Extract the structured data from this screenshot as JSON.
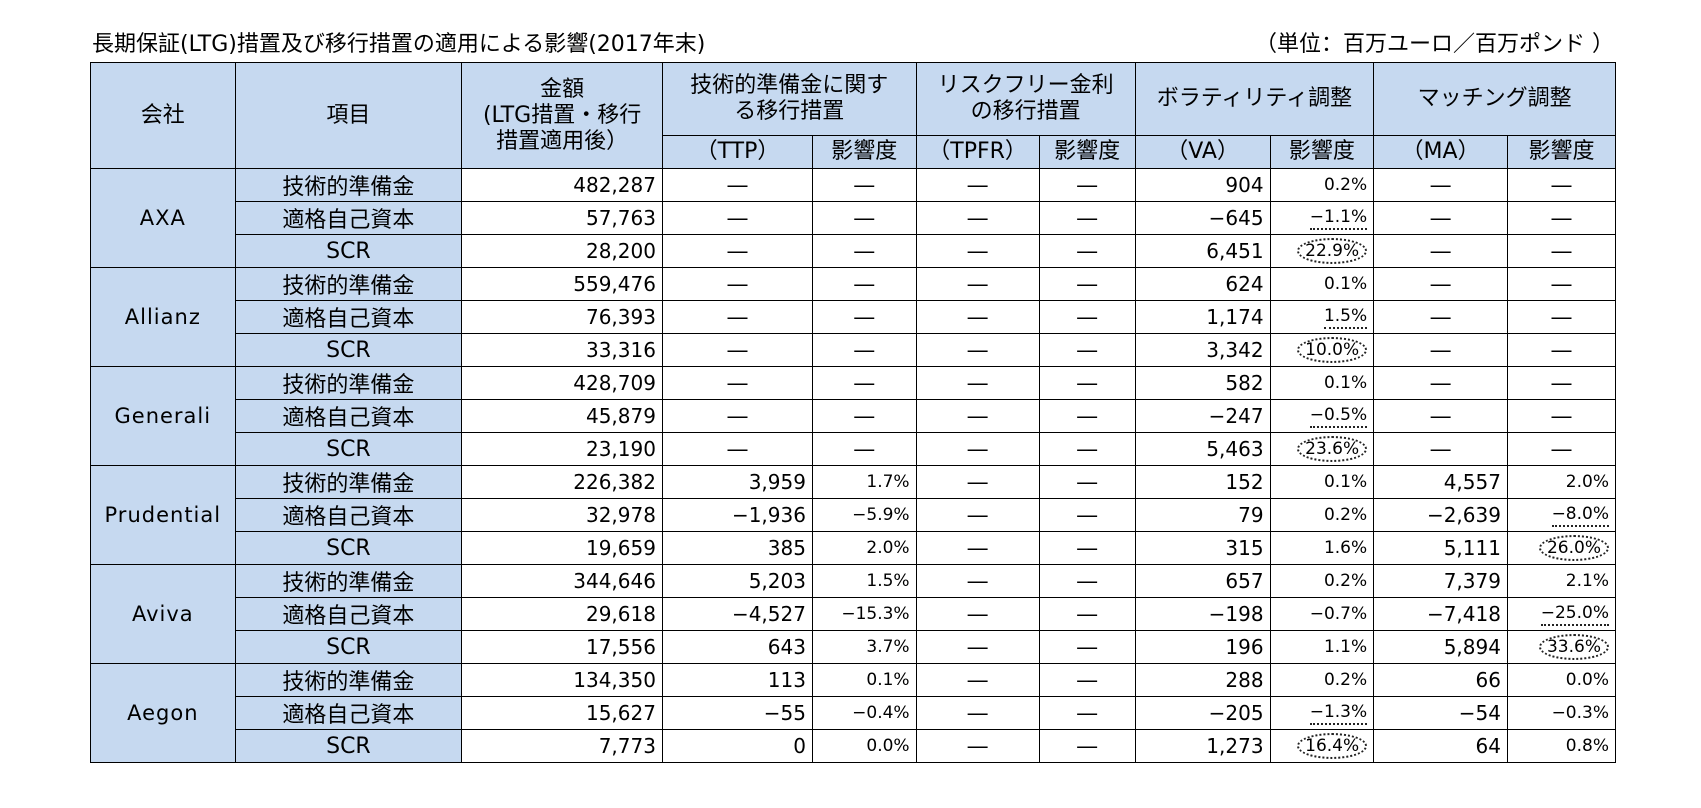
{
  "title": "長期保証(LTG)措置及び移行措置の適用による影響(2017年末)",
  "unit": "（単位：百万ユーロ／百万ポンド ）",
  "headers": {
    "company": "会社",
    "item": "項目",
    "amount_l1": "金額",
    "amount_l2": "(LTG措置・移行",
    "amount_l3": "措置適用後）",
    "ttp_group_l1": "技術的準備金に関す",
    "ttp_group_l2": "る移行措置",
    "tpfr_group_l1": "リスクフリー金利",
    "tpfr_group_l2": "の移行措置",
    "va_group": "ボラティリティ調整",
    "ma_group": "マッチング調整",
    "ttp": "（TTP）",
    "tpfr": "（TPFR）",
    "va": "（VA）",
    "ma": "（MA）",
    "impact": "影響度"
  },
  "rows": [
    {
      "company": "AXA",
      "item": "技術的準備金",
      "amount": "482,287",
      "ttp": "―",
      "ttp_pct": "―",
      "tpfr": "―",
      "tpfr_pct": "―",
      "va": "904",
      "va_pct": "0.2%",
      "ma": "―",
      "ma_pct": "―"
    },
    {
      "company": "",
      "item": "適格自己資本",
      "amount": "57,763",
      "ttp": "―",
      "ttp_pct": "―",
      "tpfr": "―",
      "tpfr_pct": "―",
      "va": "−645",
      "va_pct": "−1.1%",
      "ma": "―",
      "ma_pct": "―"
    },
    {
      "company": "",
      "item": "SCR",
      "amount": "28,200",
      "ttp": "―",
      "ttp_pct": "―",
      "tpfr": "―",
      "tpfr_pct": "―",
      "va": "6,451",
      "va_pct": "22.9%",
      "ma": "―",
      "ma_pct": "―"
    },
    {
      "company": "Allianz",
      "item": "技術的準備金",
      "amount": "559,476",
      "ttp": "―",
      "ttp_pct": "―",
      "tpfr": "―",
      "tpfr_pct": "―",
      "va": "624",
      "va_pct": "0.1%",
      "ma": "―",
      "ma_pct": "―"
    },
    {
      "company": "",
      "item": "適格自己資本",
      "amount": "76,393",
      "ttp": "―",
      "ttp_pct": "―",
      "tpfr": "―",
      "tpfr_pct": "―",
      "va": "1,174",
      "va_pct": "1.5%",
      "ma": "―",
      "ma_pct": "―"
    },
    {
      "company": "",
      "item": "SCR",
      "amount": "33,316",
      "ttp": "―",
      "ttp_pct": "―",
      "tpfr": "―",
      "tpfr_pct": "―",
      "va": "3,342",
      "va_pct": "10.0%",
      "ma": "―",
      "ma_pct": "―"
    },
    {
      "company": "Generali",
      "item": "技術的準備金",
      "amount": "428,709",
      "ttp": "―",
      "ttp_pct": "―",
      "tpfr": "―",
      "tpfr_pct": "―",
      "va": "582",
      "va_pct": "0.1%",
      "ma": "―",
      "ma_pct": "―"
    },
    {
      "company": "",
      "item": "適格自己資本",
      "amount": "45,879",
      "ttp": "―",
      "ttp_pct": "―",
      "tpfr": "―",
      "tpfr_pct": "―",
      "va": "−247",
      "va_pct": "−0.5%",
      "ma": "―",
      "ma_pct": "―"
    },
    {
      "company": "",
      "item": "SCR",
      "amount": "23,190",
      "ttp": "―",
      "ttp_pct": "―",
      "tpfr": "―",
      "tpfr_pct": "―",
      "va": "5,463",
      "va_pct": "23.6%",
      "ma": "―",
      "ma_pct": "―"
    },
    {
      "company": "Prudential",
      "item": "技術的準備金",
      "amount": "226,382",
      "ttp": "3,959",
      "ttp_pct": "1.7%",
      "tpfr": "―",
      "tpfr_pct": "―",
      "va": "152",
      "va_pct": "0.1%",
      "ma": "4,557",
      "ma_pct": "2.0%"
    },
    {
      "company": "",
      "item": "適格自己資本",
      "amount": "32,978",
      "ttp": "−1,936",
      "ttp_pct": "−5.9%",
      "tpfr": "―",
      "tpfr_pct": "―",
      "va": "79",
      "va_pct": "0.2%",
      "ma": "−2,639",
      "ma_pct": "−8.0%"
    },
    {
      "company": "",
      "item": "SCR",
      "amount": "19,659",
      "ttp": "385",
      "ttp_pct": "2.0%",
      "tpfr": "―",
      "tpfr_pct": "―",
      "va": "315",
      "va_pct": "1.6%",
      "ma": "5,111",
      "ma_pct": "26.0%"
    },
    {
      "company": "Aviva",
      "item": "技術的準備金",
      "amount": "344,646",
      "ttp": "5,203",
      "ttp_pct": "1.5%",
      "tpfr": "―",
      "tpfr_pct": "―",
      "va": "657",
      "va_pct": "0.2%",
      "ma": "7,379",
      "ma_pct": "2.1%"
    },
    {
      "company": "",
      "item": "適格自己資本",
      "amount": "29,618",
      "ttp": "−4,527",
      "ttp_pct": "−15.3%",
      "tpfr": "―",
      "tpfr_pct": "―",
      "va": "−198",
      "va_pct": "−0.7%",
      "ma": "−7,418",
      "ma_pct": "−25.0%"
    },
    {
      "company": "",
      "item": "SCR",
      "amount": "17,556",
      "ttp": "643",
      "ttp_pct": "3.7%",
      "tpfr": "―",
      "tpfr_pct": "―",
      "va": "196",
      "va_pct": "1.1%",
      "ma": "5,894",
      "ma_pct": "33.6%"
    },
    {
      "company": "Aegon",
      "item": "技術的準備金",
      "amount": "134,350",
      "ttp": "113",
      "ttp_pct": "0.1%",
      "tpfr": "―",
      "tpfr_pct": "―",
      "va": "288",
      "va_pct": "0.2%",
      "ma": "66",
      "ma_pct": "0.0%"
    },
    {
      "company": "",
      "item": "適格自己資本",
      "amount": "15,627",
      "ttp": "−55",
      "ttp_pct": "−0.4%",
      "tpfr": "―",
      "tpfr_pct": "―",
      "va": "−205",
      "va_pct": "−1.3%",
      "ma": "−54",
      "ma_pct": "−0.3%"
    },
    {
      "company": "",
      "item": "SCR",
      "amount": "7,773",
      "ttp": "0",
      "ttp_pct": "0.0%",
      "tpfr": "―",
      "tpfr_pct": "―",
      "va": "1,273",
      "va_pct": "16.4%",
      "ma": "64",
      "ma_pct": "0.8%"
    }
  ],
  "marks": {
    "circled": [
      "2.va_pct",
      "5.va_pct",
      "8.va_pct",
      "11.ma_pct",
      "14.ma_pct",
      "17.va_pct"
    ],
    "underlined": [
      "1.va_pct",
      "4.va_pct",
      "7.va_pct",
      "10.ma_pct",
      "13.ma_pct",
      "16.va_pct"
    ]
  }
}
